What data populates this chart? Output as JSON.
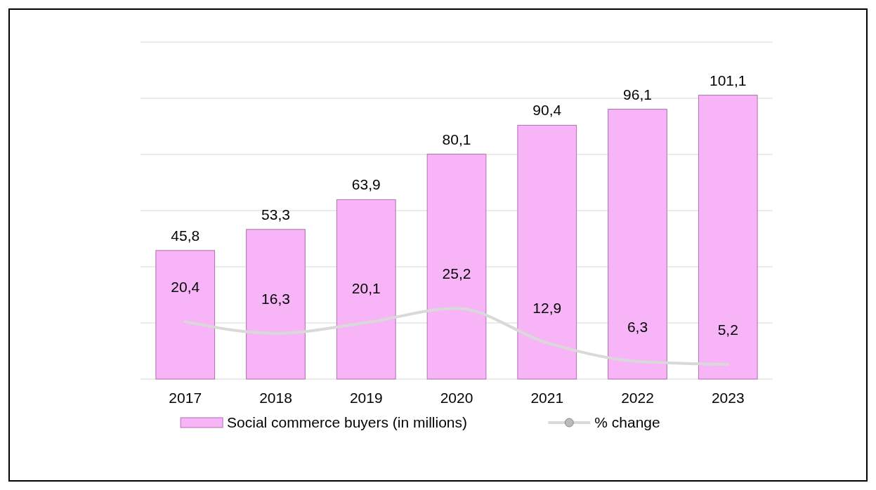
{
  "chart_data": {
    "type": "bar",
    "categories": [
      "2017",
      "2018",
      "2019",
      "2020",
      "2021",
      "2022",
      "2023"
    ],
    "series": [
      {
        "name": "Social commerce buyers (in millions)",
        "color": "#f7b4f7",
        "values": [
          45.8,
          53.3,
          63.9,
          80.1,
          90.4,
          96.1,
          101.1
        ],
        "value_labels": [
          "45,8",
          "53,3",
          "63,9",
          "80,1",
          "90,4",
          "96,1",
          "101,1"
        ]
      },
      {
        "name": "% change",
        "type": "line",
        "color": "#d9d9d9",
        "values": [
          20.4,
          16.3,
          20.1,
          25.2,
          12.9,
          6.3,
          5.2
        ],
        "value_labels": [
          "20,4",
          "16,3",
          "20,1",
          "25,2",
          "12,9",
          "6,3",
          "5,2"
        ]
      }
    ],
    "ylim": [
      0,
      120
    ],
    "yticks": [
      {
        "value": 0,
        "label": null
      },
      {
        "value": 20,
        "label": null
      },
      {
        "value": 40,
        "label": null
      },
      {
        "value": 60,
        "label": null
      },
      {
        "value": 80,
        "label": null
      },
      {
        "value": 100,
        "label": null
      },
      {
        "value": 120,
        "label": null
      }
    ],
    "tick_labels": "x",
    "grid": "y",
    "legend": "bottom"
  }
}
